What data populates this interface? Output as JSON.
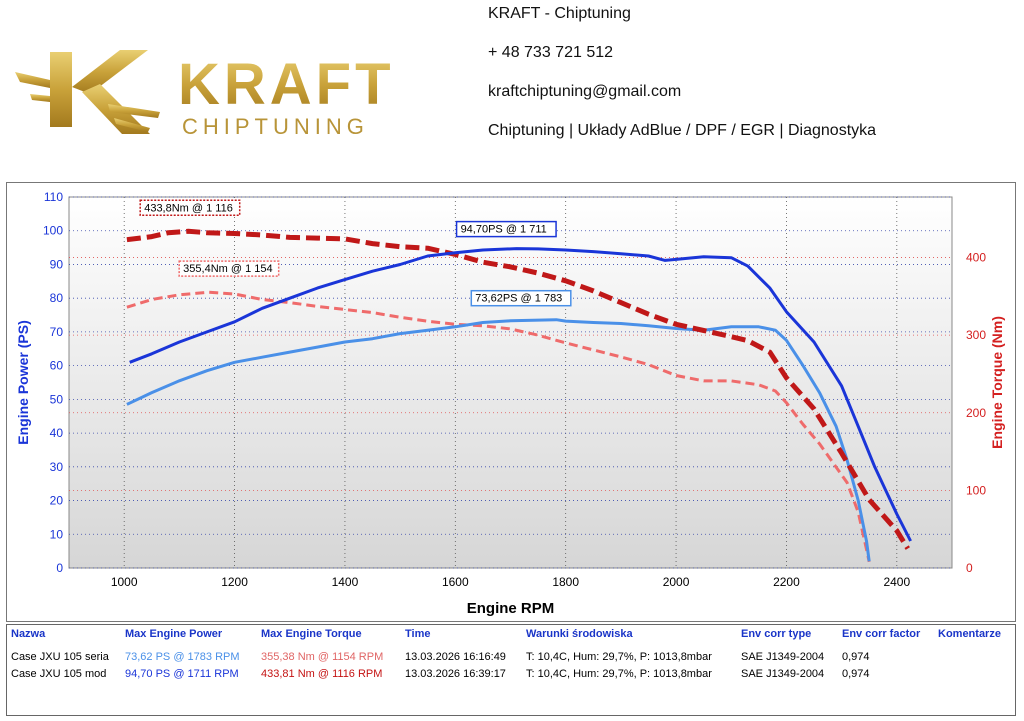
{
  "header": {
    "logo_text": "KRAFT",
    "logo_subtext": "CHIPTUNING",
    "company": "KRAFT - Chiptuning",
    "phone": "+ 48 733 721 512",
    "email": "kraftchiptuning@gmail.com",
    "services": "Chiptuning | Układy AdBlue / DPF / EGR | Diagnostyka"
  },
  "colors": {
    "power_stock": "#4a90e8",
    "power_mod": "#1a35d8",
    "torque_stock": "#ef6b6b",
    "torque_mod": "#c01818",
    "logo_gold": "#c9a23a"
  },
  "chart_data": {
    "type": "line",
    "xlabel": "Engine RPM",
    "ylabel_left": "Engine Power (PS)",
    "ylabel_right": "Engine Torque (Nm)",
    "xlim": [
      900,
      2500
    ],
    "ylim_left": [
      0,
      110
    ],
    "ylim_right": [
      0,
      478
    ],
    "x_ticks": [
      1000,
      1200,
      1400,
      1600,
      1800,
      2000,
      2200,
      2400
    ],
    "y_left_ticks": [
      0,
      10,
      20,
      30,
      40,
      50,
      60,
      70,
      80,
      90,
      100,
      110
    ],
    "y_right_ticks": [
      0,
      100,
      200,
      300,
      400
    ],
    "grid": true,
    "series": [
      {
        "key": "power_mod",
        "axis": "left",
        "style": "solid",
        "width": 3,
        "x": [
          1010,
          1050,
          1100,
          1150,
          1200,
          1250,
          1300,
          1350,
          1400,
          1450,
          1500,
          1550,
          1600,
          1650,
          1711,
          1750,
          1800,
          1850,
          1900,
          1950,
          1980,
          2000,
          2050,
          2100,
          2130,
          2170,
          2200,
          2250,
          2300,
          2330,
          2360,
          2400,
          2425
        ],
        "y": [
          61,
          63.5,
          67,
          70,
          73,
          77,
          80,
          83,
          85.5,
          88,
          90,
          92.5,
          93.5,
          94.3,
          94.7,
          94.6,
          94.3,
          93.8,
          93.2,
          92.5,
          91.2,
          91.5,
          92.3,
          92.0,
          89.5,
          83,
          76,
          67,
          54,
          42,
          30,
          16,
          8
        ]
      },
      {
        "key": "power_stock",
        "axis": "left",
        "style": "solid",
        "width": 3,
        "x": [
          1005,
          1050,
          1100,
          1150,
          1200,
          1250,
          1300,
          1350,
          1400,
          1450,
          1500,
          1550,
          1600,
          1650,
          1700,
          1783,
          1800,
          1850,
          1900,
          1950,
          2000,
          2050,
          2100,
          2150,
          2180,
          2200,
          2230,
          2260,
          2290,
          2310,
          2330,
          2345,
          2350
        ],
        "y": [
          48.5,
          52,
          55.5,
          58.5,
          61,
          62.5,
          64,
          65.5,
          67,
          68,
          69.5,
          70.5,
          71.5,
          72.8,
          73.3,
          73.62,
          73.2,
          72.8,
          72.5,
          71.8,
          71,
          70.5,
          71.5,
          71.5,
          70.5,
          67.5,
          60,
          52,
          42,
          32,
          20,
          8,
          2
        ]
      },
      {
        "key": "torque_mod",
        "axis": "right",
        "style": "dash",
        "width": 5,
        "x": [
          1005,
          1050,
          1080,
          1116,
          1150,
          1200,
          1250,
          1300,
          1350,
          1400,
          1450,
          1500,
          1550,
          1600,
          1650,
          1700,
          1750,
          1800,
          1850,
          1900,
          1950,
          2000,
          2050,
          2100,
          2130,
          2170,
          2200,
          2250,
          2300,
          2350,
          2400,
          2420
        ],
        "y": [
          423,
          427,
          432,
          433.8,
          432,
          431,
          429,
          426,
          425,
          424,
          418,
          414,
          412,
          404,
          394,
          388,
          380,
          370,
          357,
          342,
          327,
          314,
          306,
          298,
          293,
          278,
          245,
          205,
          148,
          88,
          48,
          25
        ]
      },
      {
        "key": "torque_stock",
        "axis": "right",
        "style": "dash",
        "width": 3,
        "x": [
          1005,
          1050,
          1100,
          1154,
          1200,
          1250,
          1300,
          1350,
          1400,
          1450,
          1500,
          1550,
          1600,
          1650,
          1700,
          1750,
          1800,
          1850,
          1900,
          1950,
          2000,
          2050,
          2100,
          2150,
          2180,
          2200,
          2230,
          2260,
          2290,
          2310,
          2330,
          2345,
          2350
        ],
        "y": [
          336,
          346,
          352,
          355.4,
          353,
          346,
          342,
          337,
          333,
          329,
          323,
          318,
          314,
          312,
          308,
          300,
          290,
          281,
          272,
          262,
          248,
          241,
          241,
          236,
          228,
          213,
          185,
          160,
          130,
          110,
          72,
          24,
          8
        ]
      }
    ],
    "annotations": [
      {
        "series": "torque_mod",
        "x": 1116,
        "y": 433.8,
        "text": "433,8Nm @ 1 116",
        "border": "#c01818"
      },
      {
        "series": "power_mod",
        "x": 1711,
        "y": 94.7,
        "text": "94,70PS @ 1 711",
        "border": "#1a35d8"
      },
      {
        "series": "torque_stock",
        "x": 1154,
        "y": 355.4,
        "text": "355,4Nm @ 1 154",
        "border": "#ef6b6b"
      },
      {
        "series": "power_stock",
        "x": 1783,
        "y": 73.62,
        "text": "73,62PS @ 1 783",
        "border": "#4a90e8"
      }
    ]
  },
  "results": {
    "headers": [
      "Nazwa",
      "Max Engine Power",
      "Max Engine Torque",
      "Time",
      "Warunki środowiska",
      "Env corr type",
      "Env corr factor",
      "Komentarze"
    ],
    "rows": [
      {
        "name": "Case JXU 105 seria",
        "power": "73,62 PS @ 1783 RPM",
        "torque": "355,38 Nm @ 1154 RPM",
        "time": "13.03.2026 16:16:49",
        "env": "T: 10,4C, Hum: 29,7%, P: 1013,8mbar",
        "corr_type": "SAE J1349-2004",
        "corr_factor": "0,974",
        "comment": ""
      },
      {
        "name": "Case JXU 105 mod",
        "power": "94,70 PS @ 1711 RPM",
        "torque": "433,81 Nm @ 1116 RPM",
        "time": "13.03.2026 16:39:17",
        "env": "T: 10,4C, Hum: 29,7%, P: 1013,8mbar",
        "corr_type": "SAE J1349-2004",
        "corr_factor": "0,974",
        "comment": ""
      }
    ]
  }
}
